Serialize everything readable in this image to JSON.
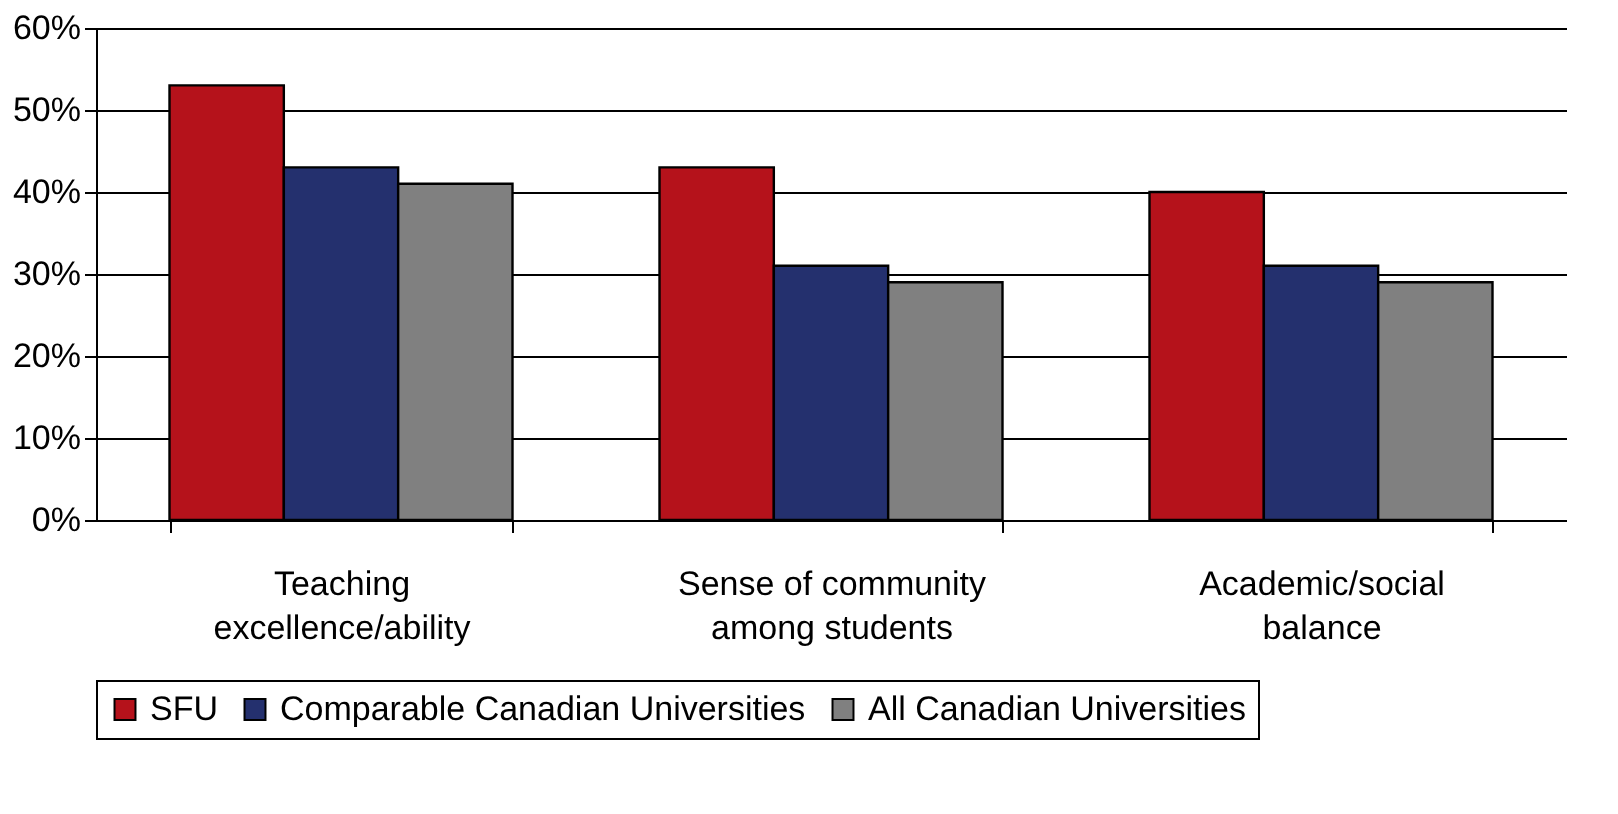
{
  "chart_data": {
    "type": "bar",
    "categories": [
      "Teaching\nexcellence/ability",
      "Sense of community\namong students",
      "Academic/social\nbalance"
    ],
    "series": [
      {
        "name": "SFU",
        "color": "#b5121b",
        "values": [
          53,
          43,
          40
        ]
      },
      {
        "name": "Comparable Canadian Universities",
        "color": "#24306e",
        "values": [
          43,
          31,
          31
        ]
      },
      {
        "name": "All Canadian Universities",
        "color": "#808080",
        "values": [
          41,
          29,
          29
        ]
      }
    ],
    "ylim": [
      0,
      60
    ],
    "yticks": [
      {
        "value": 0,
        "label": "0%"
      },
      {
        "value": 10,
        "label": "10%"
      },
      {
        "value": 20,
        "label": "20%"
      },
      {
        "value": 30,
        "label": "30%"
      },
      {
        "value": 40,
        "label": "40%"
      },
      {
        "value": 50,
        "label": "50%"
      },
      {
        "value": 60,
        "label": "60%"
      }
    ],
    "grid": "y",
    "legend": "bottom"
  }
}
